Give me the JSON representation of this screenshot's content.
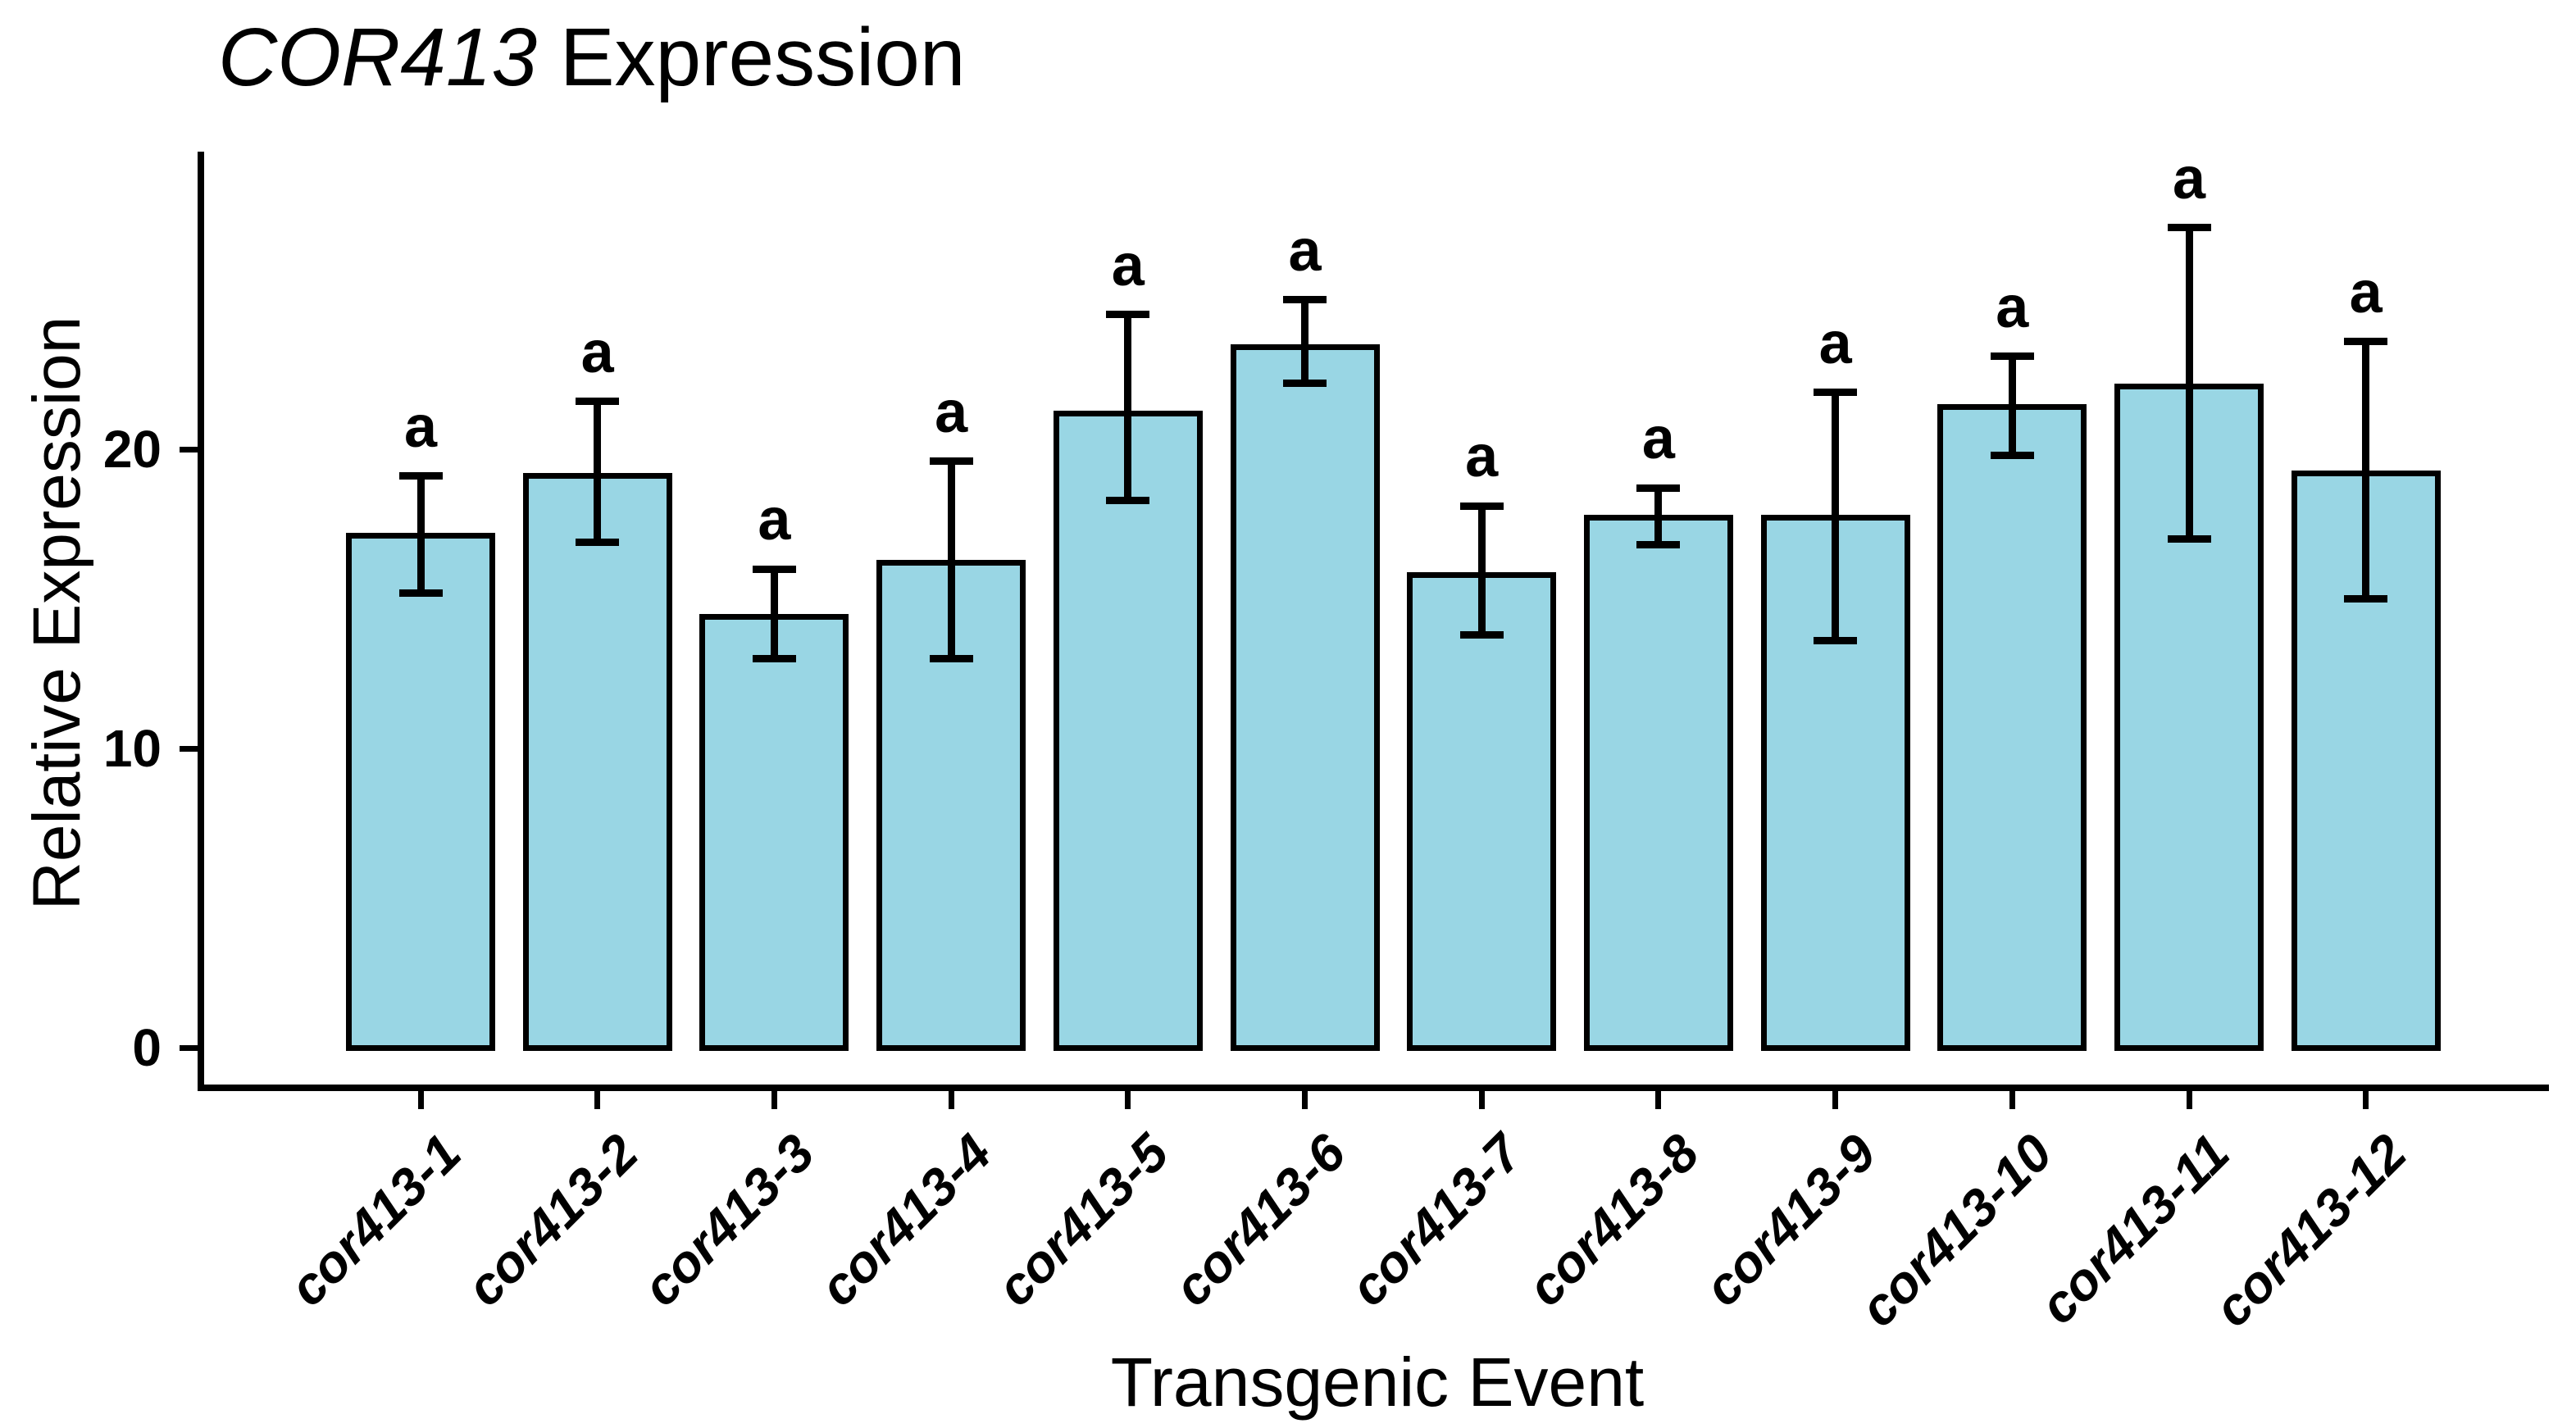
{
  "title": {
    "gene_italic": "COR413",
    "suffix": " Expression"
  },
  "y_axis": {
    "label": "Relative Expression",
    "tick_values": [
      0,
      10,
      20
    ]
  },
  "x_axis": {
    "label": "Transgenic Event"
  },
  "chart_data": {
    "type": "bar",
    "title": "COR413 Expression",
    "title_italic_part": "COR413",
    "xlabel": "Transgenic Event",
    "ylabel": "Relative Expression",
    "ylim": [
      0,
      28.6
    ],
    "yticks": [
      0,
      10,
      20
    ],
    "grid": false,
    "legend": false,
    "background_color": "#FFFFFF",
    "bar_fill_color": "#99D6E4",
    "bar_edge_color": "#000000",
    "error_bar_color": "#000000",
    "categories": [
      "cor413-1",
      "cor413-2",
      "cor413-3",
      "cor413-4",
      "cor413-5",
      "cor413-6",
      "cor413-7",
      "cor413-8",
      "cor413-9",
      "cor413-10",
      "cor413-11",
      "cor413-12"
    ],
    "series": [
      {
        "name": "Relative Expression",
        "values": [
          17.2,
          19.2,
          14.5,
          16.3,
          21.3,
          23.5,
          15.9,
          17.8,
          17.8,
          21.5,
          22.2,
          19.3
        ],
        "error_low": [
          15.2,
          16.9,
          13.0,
          13.0,
          18.3,
          22.2,
          13.8,
          16.8,
          13.6,
          19.8,
          17.0,
          15.0
        ],
        "error_high": [
          19.1,
          21.6,
          16.0,
          19.6,
          24.5,
          25.0,
          18.1,
          18.7,
          21.9,
          23.1,
          27.4,
          23.6
        ]
      }
    ],
    "significance_letters": [
      "a",
      "a",
      "a",
      "a",
      "a",
      "a",
      "a",
      "a",
      "a",
      "a",
      "a",
      "a"
    ]
  }
}
